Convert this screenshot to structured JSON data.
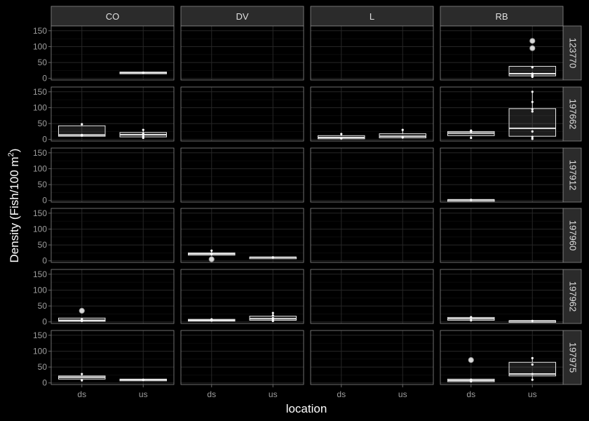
{
  "chart_data": {
    "type": "boxplot",
    "facet_grid": true,
    "xlabel": "location",
    "ylabel_main": "Density (Fish/100 m",
    "ylabel_sup": "2",
    "ylabel_close": ")",
    "x_categories": [
      "ds",
      "us"
    ],
    "columns": [
      "CO",
      "DV",
      "L",
      "RB"
    ],
    "rows": [
      "123770",
      "197662",
      "197912",
      "197960",
      "197962",
      "197975"
    ],
    "ylim": [
      -5,
      165
    ],
    "yticks": [
      0,
      50,
      100,
      150
    ],
    "grid": true,
    "colors": {
      "background": "#000000",
      "panel_bg": "#000000",
      "panel_border": "#8a8a8a",
      "strip_bg": "#2b2b2b",
      "strip_text": "#e0e0e0",
      "grid_major": "#262626",
      "grid_minor": "#141414",
      "box_fill": "#bdbdbd",
      "box_line": "#e6e6e6",
      "points": "#ffffff",
      "axis_text": "#9e9e9e",
      "axis_title": "#ffffff"
    },
    "boxes": [
      {
        "row": "123770",
        "col": "CO",
        "x": "us",
        "q1": 17,
        "median": 18,
        "q3": 20,
        "lower": 17,
        "upper": 20,
        "outliers": [],
        "points": [
          18
        ]
      },
      {
        "row": "123770",
        "col": "RB",
        "x": "us",
        "q1": 8,
        "median": 15,
        "q3": 38,
        "lower": 5,
        "upper": 38,
        "outliers": [
          95,
          118
        ],
        "points": [
          5,
          8,
          12,
          15,
          35
        ]
      },
      {
        "row": "197662",
        "col": "CO",
        "x": "ds",
        "q1": 10,
        "median": 14,
        "q3": 43,
        "lower": 10,
        "upper": 48,
        "outliers": [],
        "points": [
          12,
          14,
          48
        ]
      },
      {
        "row": "197662",
        "col": "CO",
        "x": "us",
        "q1": 8,
        "median": 15,
        "q3": 22,
        "lower": 5,
        "upper": 30,
        "outliers": [],
        "points": [
          5,
          10,
          18,
          30
        ]
      },
      {
        "row": "197662",
        "col": "L",
        "x": "ds",
        "q1": 2,
        "median": 6,
        "q3": 12,
        "lower": 0,
        "upper": 17,
        "outliers": [],
        "points": [
          3,
          17
        ]
      },
      {
        "row": "197662",
        "col": "L",
        "x": "us",
        "q1": 5,
        "median": 10,
        "q3": 18,
        "lower": 5,
        "upper": 30,
        "outliers": [],
        "points": [
          6,
          30
        ]
      },
      {
        "row": "197662",
        "col": "RB",
        "x": "ds",
        "q1": 12,
        "median": 20,
        "q3": 25,
        "lower": 5,
        "upper": 28,
        "outliers": [],
        "points": [
          5,
          25,
          28
        ]
      },
      {
        "row": "197662",
        "col": "RB",
        "x": "us",
        "q1": 10,
        "median": 35,
        "q3": 97,
        "lower": 2,
        "upper": 150,
        "outliers": [],
        "points": [
          2,
          8,
          25,
          88,
          95,
          118,
          150
        ]
      },
      {
        "row": "197912",
        "col": "RB",
        "x": "ds",
        "q1": 1,
        "median": 2,
        "q3": 3,
        "lower": 0,
        "upper": 4,
        "outliers": [],
        "points": [
          2
        ]
      },
      {
        "row": "197960",
        "col": "DV",
        "x": "ds",
        "q1": 18,
        "median": 22,
        "q3": 25,
        "lower": 15,
        "upper": 32,
        "outliers": [
          5
        ],
        "points": [
          22,
          32
        ]
      },
      {
        "row": "197960",
        "col": "DV",
        "x": "us",
        "q1": 10,
        "median": 11,
        "q3": 12,
        "lower": 10,
        "upper": 12,
        "outliers": [],
        "points": [
          11
        ]
      },
      {
        "row": "197962",
        "col": "CO",
        "x": "ds",
        "q1": 2,
        "median": 5,
        "q3": 12,
        "lower": 1,
        "upper": 12,
        "outliers": [
          35
        ],
        "points": [
          3,
          8
        ]
      },
      {
        "row": "197962",
        "col": "DV",
        "x": "ds",
        "q1": 3,
        "median": 5,
        "q3": 8,
        "lower": 2,
        "upper": 10,
        "outliers": [],
        "points": [
          4,
          8
        ]
      },
      {
        "row": "197962",
        "col": "DV",
        "x": "us",
        "q1": 5,
        "median": 10,
        "q3": 18,
        "lower": 2,
        "upper": 28,
        "outliers": [],
        "points": [
          3,
          6,
          12,
          20,
          28
        ]
      },
      {
        "row": "197962",
        "col": "RB",
        "x": "ds",
        "q1": 5,
        "median": 10,
        "q3": 14,
        "lower": 3,
        "upper": 15,
        "outliers": [],
        "points": [
          5,
          15
        ]
      },
      {
        "row": "197962",
        "col": "RB",
        "x": "us",
        "q1": 2,
        "median": 3,
        "q3": 4,
        "lower": 2,
        "upper": 4,
        "outliers": [],
        "points": [
          3
        ]
      },
      {
        "row": "197975",
        "col": "CO",
        "x": "ds",
        "q1": 12,
        "median": 18,
        "q3": 22,
        "lower": 8,
        "upper": 28,
        "outliers": [],
        "points": [
          8,
          28
        ]
      },
      {
        "row": "197975",
        "col": "CO",
        "x": "us",
        "q1": 8,
        "median": 10,
        "q3": 12,
        "lower": 8,
        "upper": 12,
        "outliers": [],
        "points": [
          10
        ]
      },
      {
        "row": "197975",
        "col": "RB",
        "x": "ds",
        "q1": 4,
        "median": 8,
        "q3": 12,
        "lower": 2,
        "upper": 14,
        "outliers": [
          72
        ],
        "points": [
          5,
          10
        ]
      },
      {
        "row": "197975",
        "col": "RB",
        "x": "us",
        "q1": 22,
        "median": 28,
        "q3": 65,
        "lower": 10,
        "upper": 78,
        "outliers": [],
        "points": [
          10,
          28,
          58,
          78
        ]
      }
    ]
  }
}
